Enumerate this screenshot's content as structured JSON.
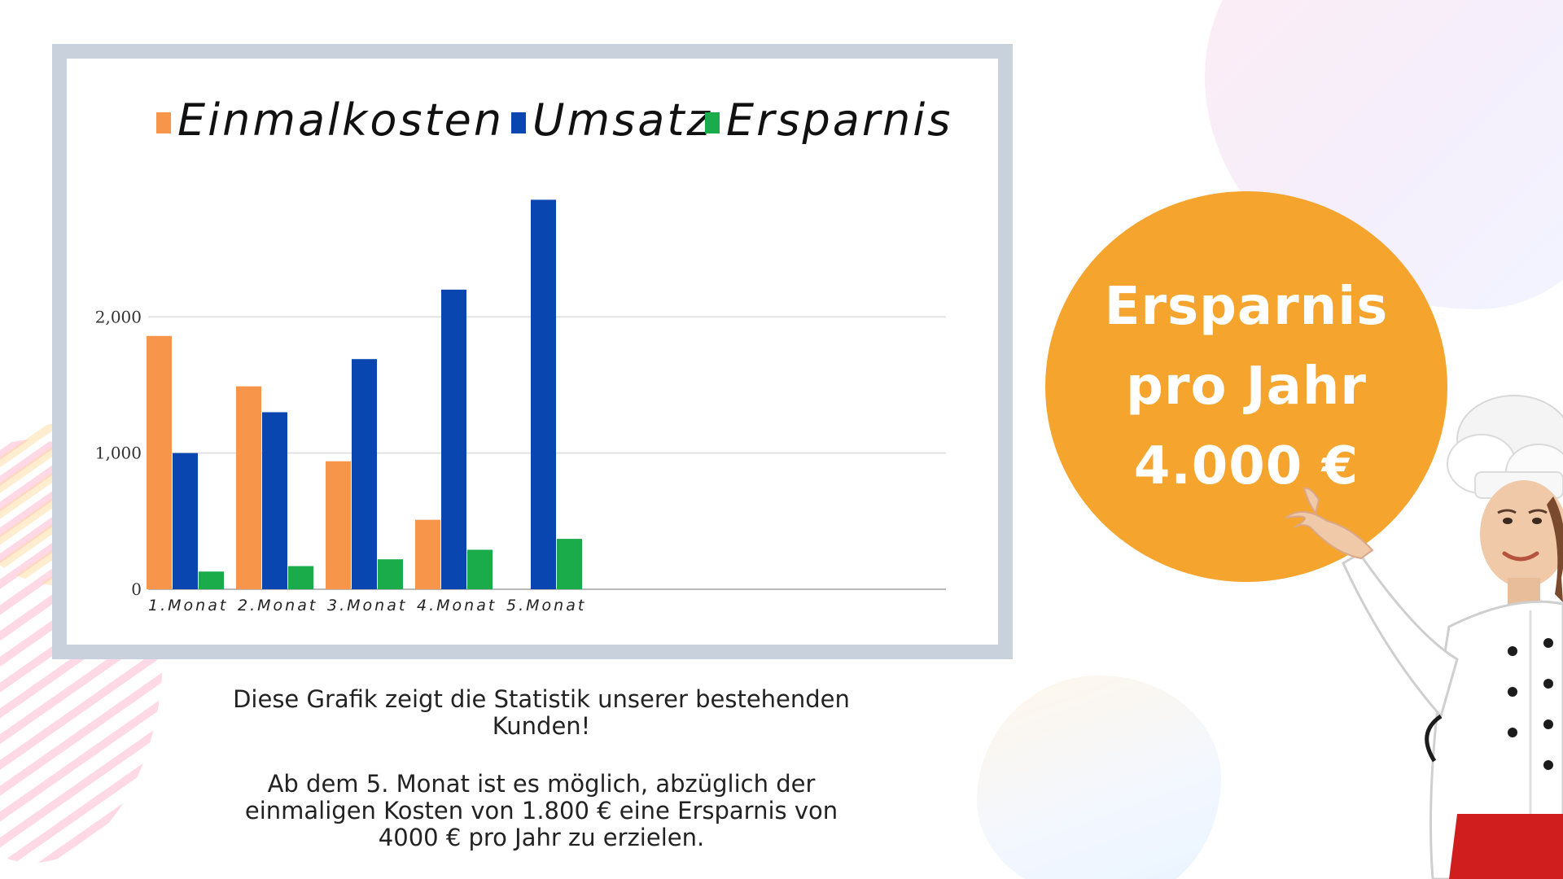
{
  "chart_data": {
    "type": "bar",
    "categories": [
      "1.Monat",
      "2.Monat",
      "3.Monat",
      "4.Monat",
      "5.Monat"
    ],
    "series": [
      {
        "name": "Einmalkosten",
        "values": [
          1860,
          1490,
          940,
          510,
          null
        ]
      },
      {
        "name": "Umsatz",
        "values": [
          1000,
          1300,
          1690,
          2200,
          2860
        ]
      },
      {
        "name": "Ersparnis",
        "values": [
          130,
          170,
          220,
          290,
          370
        ]
      }
    ],
    "yticks": [
      "0",
      "1,000",
      "2,000"
    ],
    "ylim": [
      0,
      3000
    ],
    "grid": true,
    "legend_position": "top",
    "colors": {
      "Einmalkosten": "#f7954a",
      "Umsatz": "#0a46b0",
      "Ersparnis": "#1aab4a"
    }
  },
  "caption": {
    "line1": "Diese Grafik zeigt die Statistik unserer bestehenden",
    "line2": "Kunden!",
    "line3": "Ab dem 5. Monat ist es möglich, abzüglich der",
    "line4": "einmaligen Kosten von 1.800 € eine Ersparnis von",
    "line5": "4000 € pro Jahr zu erzielen."
  },
  "savings_badge": {
    "line1": "Ersparnis",
    "line2": "pro Jahr",
    "line3": "4.000 €",
    "color": "#f5a42e"
  },
  "illustration": {
    "icon": "chef-icon"
  }
}
